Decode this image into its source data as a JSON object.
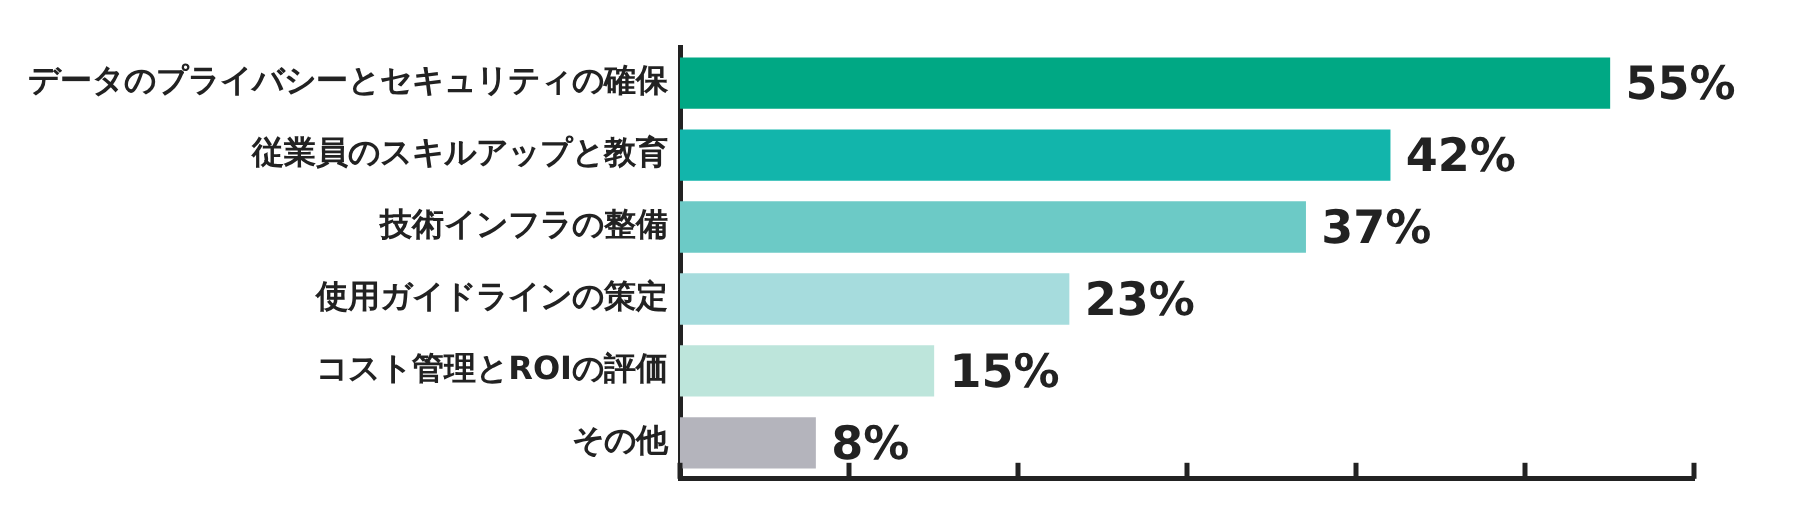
{
  "chart_data": {
    "type": "bar",
    "orientation": "horizontal",
    "categories": [
      "データのプライバシーとセキュリティの確保",
      "従業員のスキルアップと教育",
      "技術インフラの整備",
      "使用ガイドラインの策定",
      "コスト管理とROIの評価",
      "その他"
    ],
    "values": [
      55,
      42,
      37,
      23,
      15,
      8
    ],
    "colors": [
      "#00a884",
      "#12b5ab",
      "#6ccac6",
      "#a6dcdd",
      "#bde5db",
      "#b4b4bc"
    ],
    "value_labels": [
      "55%",
      "42%",
      "37%",
      "23%",
      "15%",
      "8%"
    ],
    "xlim": [
      0,
      60
    ],
    "xticks": [
      {
        "value": 0,
        "label": null
      },
      {
        "value": 10,
        "label": null
      },
      {
        "value": 20,
        "label": null
      },
      {
        "value": 30,
        "label": null
      },
      {
        "value": 40,
        "label": null
      },
      {
        "value": 50,
        "label": null
      },
      {
        "value": 60,
        "label": null
      }
    ],
    "grid": false,
    "legend": false
  }
}
